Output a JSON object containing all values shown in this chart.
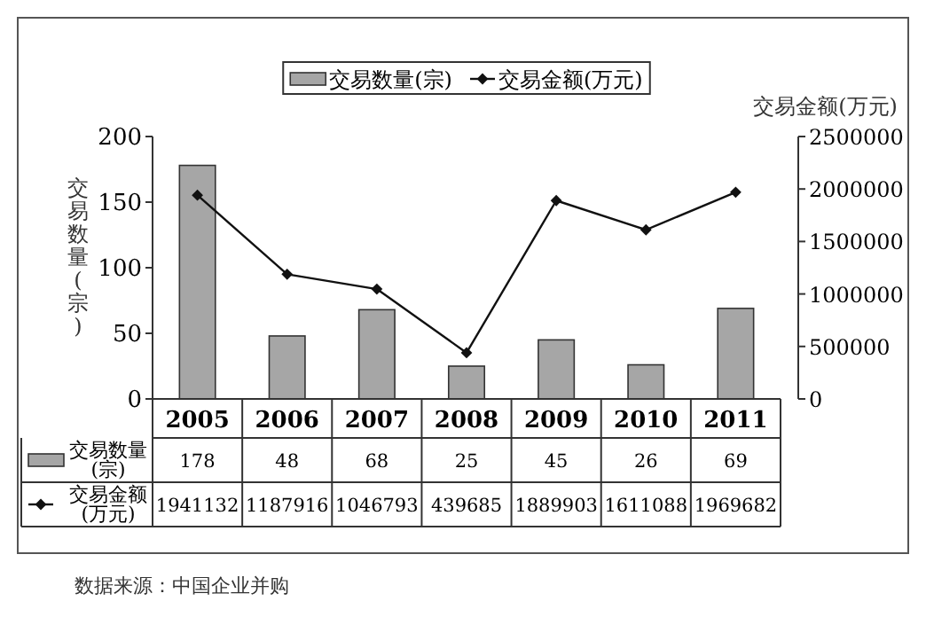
{
  "chart_data": {
    "type": "bar",
    "categories": [
      "2005",
      "2006",
      "2007",
      "2008",
      "2009",
      "2010",
      "2011"
    ],
    "series": [
      {
        "name": "交易数量(宗)",
        "color": "#a6a6a6",
        "values": [
          178,
          48,
          68,
          25,
          45,
          26,
          69
        ]
      },
      {
        "name": "交易金额(万元)",
        "type": "line",
        "axis": "y2",
        "color": "#111111",
        "values": [
          1941132,
          1187916,
          1046793,
          439685,
          1889903,
          1611088,
          1969682
        ]
      }
    ],
    "ylabel": "交易数量(宗)",
    "y2label": "交易金额(万元)",
    "ylim": [
      0,
      200
    ],
    "yticks": [
      0,
      50,
      100,
      150,
      200
    ],
    "y2lim": [
      0,
      2500000
    ],
    "y2ticks": [
      0,
      500000,
      1000000,
      1500000,
      2000000,
      2500000
    ],
    "data_labels": true,
    "legend": "top",
    "marker": "diamond",
    "grid": false,
    "annotations": [
      "数据来源：中国企业并购"
    ]
  }
}
